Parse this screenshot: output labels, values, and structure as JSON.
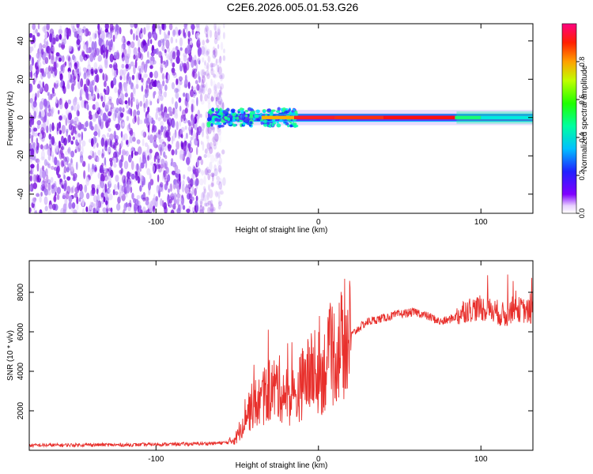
{
  "title": "C2E6.2026.005.01.53.G26",
  "colors": {
    "snr_line": "#e8302c",
    "frame": "#000000",
    "background": "#ffffff"
  },
  "chart_data": [
    {
      "type": "heatmap",
      "name": "spectrogram",
      "xlabel": "Height of straight line (km)",
      "ylabel": "Frequency (Hz)",
      "xlim": [
        -178,
        132
      ],
      "ylim": [
        -50,
        49
      ],
      "x_ticks": [
        -100,
        0,
        100
      ],
      "y_ticks": [
        -40,
        -20,
        0,
        20,
        40
      ],
      "noise_region_x": [
        -178,
        -58
      ],
      "signal_region_x": [
        -68,
        132
      ],
      "signal_center_frequency": 0,
      "colorbar": {
        "label": "Normalized spectral amplitude",
        "range": [
          0,
          1
        ],
        "ticks": [
          0.0,
          0.2,
          0.4,
          0.6,
          0.8
        ]
      }
    },
    {
      "type": "line",
      "name": "snr",
      "xlabel": "Height of straight line (km)",
      "ylabel": "SNR (10 * v/v)",
      "xlim": [
        -178,
        132
      ],
      "ylim": [
        0,
        9600
      ],
      "x_ticks": [
        -100,
        0,
        100
      ],
      "y_ticks": [
        2000,
        4000,
        6000,
        8000
      ],
      "series": [
        {
          "name": "SNR",
          "x": [
            -178,
            -160,
            -140,
            -120,
            -100,
            -80,
            -65,
            -55,
            -50,
            -45,
            -40,
            -35,
            -30,
            -25,
            -20,
            -15,
            -10,
            -5,
            0,
            5,
            10,
            15,
            20,
            25,
            30,
            35,
            40,
            50,
            60,
            70,
            75,
            80,
            85,
            90,
            100,
            110,
            115,
            120,
            125,
            130,
            132
          ],
          "values": [
            250,
            260,
            280,
            270,
            300,
            320,
            350,
            400,
            700,
            1800,
            2300,
            2500,
            3000,
            3200,
            2800,
            2500,
            3400,
            3900,
            3600,
            4300,
            4900,
            5400,
            5800,
            6200,
            6500,
            6600,
            6700,
            6900,
            7000,
            6700,
            6500,
            6600,
            6800,
            7100,
            7200,
            7000,
            6800,
            7200,
            7100,
            7000,
            7000
          ]
        }
      ]
    }
  ]
}
